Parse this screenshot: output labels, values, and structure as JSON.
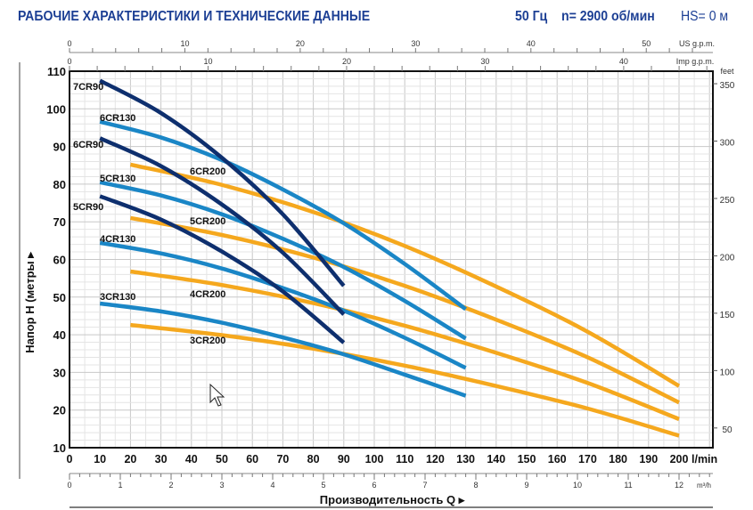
{
  "header": {
    "title": "РАБОЧИЕ ХАРАКТЕРИСТИКИ И ТЕХНИЧЕСКИЕ ДАННЫЕ",
    "frequency": "50 Гц",
    "speed": "n= 2900 об/мин",
    "hs": "HS= 0 м"
  },
  "colors": {
    "cr90": "#0e2f6e",
    "cr130": "#1a86c6",
    "cr200": "#f5a81e",
    "title": "#1c3f94"
  },
  "chart_data": {
    "type": "line",
    "title": "РАБОЧИЕ ХАРАКТЕРИСТИКИ И ТЕХНИЧЕСКИЕ ДАННЫЕ",
    "xlabel": "Производительность Q",
    "ylabel": "Напор H (метры",
    "xlim": [
      0,
      211
    ],
    "ylim": [
      10,
      110
    ],
    "x_unit": "l/min",
    "grid": true,
    "x_ticks": [
      0,
      10,
      20,
      30,
      40,
      50,
      60,
      70,
      80,
      90,
      100,
      110,
      120,
      130,
      140,
      150,
      160,
      170,
      180,
      190,
      200
    ],
    "y_ticks": [
      10,
      20,
      30,
      40,
      50,
      60,
      70,
      80,
      90,
      100,
      110
    ],
    "secondary_axes": {
      "us_gpm": {
        "label": "US g.p.m.",
        "ticks": [
          0,
          10,
          20,
          30,
          40,
          50
        ]
      },
      "imp_gpm": {
        "label": "Imp g.p.m.",
        "ticks": [
          0,
          10,
          20,
          30,
          40
        ]
      },
      "m3h": {
        "label": "m³/h",
        "ticks": [
          0,
          1,
          2,
          3,
          4,
          5,
          6,
          7,
          8,
          9,
          10,
          11,
          12
        ]
      },
      "feet": {
        "label": "feet",
        "ticks": [
          50,
          100,
          150,
          200,
          250,
          300,
          350
        ]
      }
    },
    "series": [
      {
        "name": "7CR90",
        "group": "cr90",
        "x": [
          10,
          30,
          50,
          70,
          90
        ],
        "y": [
          107.5,
          98.9,
          87,
          72,
          53
        ]
      },
      {
        "name": "6CR90",
        "group": "cr90",
        "x": [
          10,
          30,
          50,
          70,
          90
        ],
        "y": [
          92.2,
          84.8,
          74.6,
          61.8,
          45.4
        ]
      },
      {
        "name": "5CR90",
        "group": "cr90",
        "x": [
          10,
          30,
          50,
          70,
          90
        ],
        "y": [
          76.8,
          70.6,
          62.1,
          51.5,
          37.9
        ]
      },
      {
        "name": "6CR130",
        "group": "cr130",
        "x": [
          10,
          30,
          50,
          70,
          90,
          110,
          130
        ],
        "y": [
          96.6,
          92.4,
          86.4,
          78.6,
          69.6,
          58.8,
          46.8
        ]
      },
      {
        "name": "5CR130",
        "group": "cr130",
        "x": [
          10,
          30,
          50,
          70,
          90,
          110,
          130
        ],
        "y": [
          80.5,
          77,
          72,
          65.5,
          58,
          49,
          39
        ]
      },
      {
        "name": "4CR130",
        "group": "cr130",
        "x": [
          10,
          30,
          50,
          70,
          90,
          110,
          130
        ],
        "y": [
          64.4,
          61.6,
          57.6,
          52.4,
          46.4,
          39.2,
          31.2
        ]
      },
      {
        "name": "3CR130",
        "group": "cr130",
        "x": [
          10,
          30,
          50,
          70,
          90,
          110,
          130
        ],
        "y": [
          48.3,
          46.2,
          43.2,
          39.3,
          34.8,
          29.4,
          23.8
        ]
      },
      {
        "name": "6CR200",
        "group": "cr200",
        "x": [
          20,
          50,
          80,
          110,
          140,
          170,
          200
        ],
        "y": [
          85.2,
          79.8,
          72.6,
          63.6,
          52.8,
          40.8,
          26.4
        ]
      },
      {
        "name": "5CR200",
        "group": "cr200",
        "x": [
          20,
          50,
          80,
          110,
          140,
          170,
          200
        ],
        "y": [
          71,
          66.5,
          60.5,
          53,
          44,
          34,
          22
        ]
      },
      {
        "name": "4CR200",
        "group": "cr200",
        "x": [
          20,
          50,
          80,
          110,
          140,
          170,
          200
        ],
        "y": [
          56.8,
          53.2,
          48.4,
          42.4,
          35.2,
          27.2,
          17.6
        ]
      },
      {
        "name": "3CR200",
        "group": "cr200",
        "x": [
          20,
          50,
          80,
          110,
          140,
          170,
          200
        ],
        "y": [
          42.6,
          39.9,
          36.3,
          31.8,
          26.4,
          20.4,
          13.2
        ]
      }
    ]
  }
}
